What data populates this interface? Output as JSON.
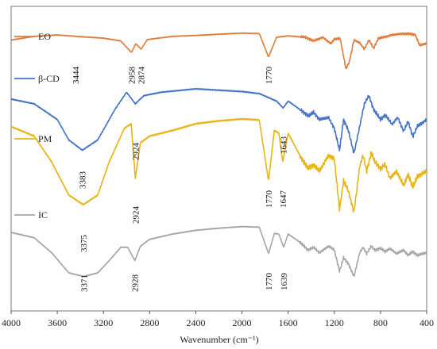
{
  "chart_data": {
    "type": "line",
    "title": "",
    "xlabel": "Wavenumber (cm⁻¹)",
    "ylabel": "",
    "xlim": [
      4000,
      400
    ],
    "x_reversed": true,
    "x_ticks": [
      "4000",
      "3600",
      "3200",
      "2800",
      "2400",
      "2000",
      "1600",
      "1200",
      "800",
      "400"
    ],
    "y_ticks_shown": false,
    "grid": false,
    "legend": "inline-left",
    "series": [
      {
        "name": "EO",
        "color": "#E07B39",
        "points": [
          [
            4000,
            0.82
          ],
          [
            3800,
            0.9
          ],
          [
            3600,
            0.93
          ],
          [
            3444,
            0.9
          ],
          [
            3200,
            0.86
          ],
          [
            3050,
            0.8
          ],
          [
            2958,
            0.55
          ],
          [
            2920,
            0.74
          ],
          [
            2874,
            0.62
          ],
          [
            2820,
            0.83
          ],
          [
            2600,
            0.9
          ],
          [
            2400,
            0.92
          ],
          [
            2000,
            0.97
          ],
          [
            1850,
            0.96
          ],
          [
            1770,
            0.45
          ],
          [
            1700,
            0.88
          ],
          [
            1600,
            0.91
          ],
          [
            1450,
            0.88
          ],
          [
            1380,
            0.8
          ],
          [
            1300,
            0.88
          ],
          [
            1230,
            0.74
          ],
          [
            1200,
            0.84
          ],
          [
            1150,
            0.86
          ],
          [
            1100,
            0.2
          ],
          [
            1070,
            0.34
          ],
          [
            1030,
            0.82
          ],
          [
            980,
            0.76
          ],
          [
            940,
            0.62
          ],
          [
            900,
            0.82
          ],
          [
            860,
            0.64
          ],
          [
            820,
            0.85
          ],
          [
            700,
            0.93
          ],
          [
            600,
            0.96
          ],
          [
            500,
            0.94
          ],
          [
            460,
            0.7
          ],
          [
            400,
            0.75
          ]
        ]
      },
      {
        "name": "β-CD",
        "color": "#4472C4",
        "points": [
          [
            4000,
            0.85
          ],
          [
            3800,
            0.78
          ],
          [
            3600,
            0.55
          ],
          [
            3500,
            0.25
          ],
          [
            3383,
            0.1
          ],
          [
            3250,
            0.25
          ],
          [
            3100,
            0.7
          ],
          [
            3000,
            0.95
          ],
          [
            2924,
            0.78
          ],
          [
            2850,
            0.9
          ],
          [
            2700,
            0.95
          ],
          [
            2400,
            1.0
          ],
          [
            2200,
            0.98
          ],
          [
            2000,
            0.96
          ],
          [
            1850,
            0.93
          ],
          [
            1700,
            0.82
          ],
          [
            1643,
            0.72
          ],
          [
            1600,
            0.82
          ],
          [
            1500,
            0.7
          ],
          [
            1420,
            0.6
          ],
          [
            1380,
            0.66
          ],
          [
            1330,
            0.55
          ],
          [
            1250,
            0.58
          ],
          [
            1200,
            0.42
          ],
          [
            1155,
            0.1
          ],
          [
            1120,
            0.55
          ],
          [
            1080,
            0.4
          ],
          [
            1030,
            0.05
          ],
          [
            980,
            0.45
          ],
          [
            940,
            0.78
          ],
          [
            900,
            0.9
          ],
          [
            860,
            0.7
          ],
          [
            800,
            0.55
          ],
          [
            760,
            0.62
          ],
          [
            700,
            0.48
          ],
          [
            650,
            0.58
          ],
          [
            600,
            0.38
          ],
          [
            560,
            0.52
          ],
          [
            520,
            0.3
          ],
          [
            480,
            0.45
          ],
          [
            400,
            0.55
          ]
        ]
      },
      {
        "name": "PM",
        "color": "#E8B416",
        "points": [
          [
            4000,
            0.92
          ],
          [
            3800,
            0.82
          ],
          [
            3650,
            0.55
          ],
          [
            3500,
            0.2
          ],
          [
            3375,
            0.1
          ],
          [
            3250,
            0.2
          ],
          [
            3150,
            0.55
          ],
          [
            3020,
            0.9
          ],
          [
            2960,
            0.95
          ],
          [
            2924,
            0.38
          ],
          [
            2880,
            0.75
          ],
          [
            2800,
            0.82
          ],
          [
            2600,
            0.88
          ],
          [
            2400,
            0.95
          ],
          [
            2200,
            0.98
          ],
          [
            2000,
            1.0
          ],
          [
            1850,
            0.99
          ],
          [
            1770,
            0.35
          ],
          [
            1720,
            0.88
          ],
          [
            1680,
            0.85
          ],
          [
            1647,
            0.55
          ],
          [
            1600,
            0.85
          ],
          [
            1500,
            0.62
          ],
          [
            1430,
            0.48
          ],
          [
            1380,
            0.52
          ],
          [
            1330,
            0.45
          ],
          [
            1250,
            0.62
          ],
          [
            1200,
            0.58
          ],
          [
            1155,
            0.05
          ],
          [
            1120,
            0.35
          ],
          [
            1080,
            0.25
          ],
          [
            1030,
            0.02
          ],
          [
            980,
            0.5
          ],
          [
            950,
            0.62
          ],
          [
            920,
            0.45
          ],
          [
            880,
            0.65
          ],
          [
            850,
            0.55
          ],
          [
            800,
            0.48
          ],
          [
            760,
            0.52
          ],
          [
            720,
            0.38
          ],
          [
            660,
            0.45
          ],
          [
            600,
            0.3
          ],
          [
            560,
            0.42
          ],
          [
            520,
            0.28
          ],
          [
            480,
            0.4
          ],
          [
            400,
            0.45
          ]
        ]
      },
      {
        "name": "IC",
        "color": "#A6A6A6",
        "points": [
          [
            4000,
            0.88
          ],
          [
            3800,
            0.78
          ],
          [
            3650,
            0.5
          ],
          [
            3500,
            0.12
          ],
          [
            3371,
            0.05
          ],
          [
            3250,
            0.12
          ],
          [
            3150,
            0.35
          ],
          [
            3050,
            0.6
          ],
          [
            2990,
            0.6
          ],
          [
            2928,
            0.35
          ],
          [
            2880,
            0.62
          ],
          [
            2800,
            0.75
          ],
          [
            2600,
            0.85
          ],
          [
            2400,
            0.92
          ],
          [
            2200,
            0.96
          ],
          [
            2000,
            0.99
          ],
          [
            1850,
            0.98
          ],
          [
            1770,
            0.48
          ],
          [
            1720,
            0.86
          ],
          [
            1680,
            0.85
          ],
          [
            1639,
            0.6
          ],
          [
            1600,
            0.85
          ],
          [
            1500,
            0.7
          ],
          [
            1430,
            0.55
          ],
          [
            1380,
            0.6
          ],
          [
            1330,
            0.5
          ],
          [
            1250,
            0.62
          ],
          [
            1200,
            0.55
          ],
          [
            1155,
            0.15
          ],
          [
            1120,
            0.4
          ],
          [
            1080,
            0.3
          ],
          [
            1030,
            0.05
          ],
          [
            980,
            0.5
          ],
          [
            950,
            0.6
          ],
          [
            920,
            0.48
          ],
          [
            880,
            0.62
          ],
          [
            850,
            0.55
          ],
          [
            800,
            0.58
          ],
          [
            760,
            0.52
          ],
          [
            720,
            0.58
          ],
          [
            660,
            0.48
          ],
          [
            600,
            0.55
          ],
          [
            560,
            0.45
          ],
          [
            520,
            0.52
          ],
          [
            480,
            0.45
          ],
          [
            400,
            0.5
          ]
        ]
      }
    ],
    "peak_labels": [
      {
        "series": "EO",
        "x": 3444,
        "text": "3444"
      },
      {
        "series": "EO",
        "x": 2958,
        "text": "2958"
      },
      {
        "series": "EO",
        "x": 2874,
        "text": "2874"
      },
      {
        "series": "EO",
        "x": 1770,
        "text": "1770"
      },
      {
        "series": "β-CD",
        "x": 3383,
        "text": "3383"
      },
      {
        "series": "β-CD",
        "x": 2924,
        "text": "2924"
      },
      {
        "series": "β-CD",
        "x": 1643,
        "text": "1643"
      },
      {
        "series": "PM",
        "x": 3375,
        "text": "3375"
      },
      {
        "series": "PM",
        "x": 2924,
        "text": "2924"
      },
      {
        "series": "PM",
        "x": 1770,
        "text": "1770"
      },
      {
        "series": "PM",
        "x": 1647,
        "text": "1647"
      },
      {
        "series": "IC",
        "x": 3371,
        "text": "3371"
      },
      {
        "series": "IC",
        "x": 2928,
        "text": "2928"
      },
      {
        "series": "IC",
        "x": 1770,
        "text": "1770"
      },
      {
        "series": "IC",
        "x": 1639,
        "text": "1639"
      }
    ]
  }
}
